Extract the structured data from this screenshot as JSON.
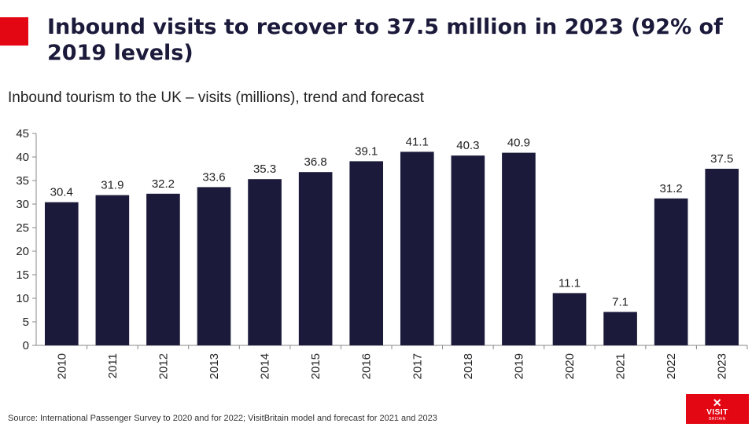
{
  "colors": {
    "accent": "#e30613",
    "bar": "#1b1a3b",
    "logo_bg": "#e30613"
  },
  "header": {
    "title": "Inbound visits to recover to 37.5 million in 2023 (92% of 2019 levels)",
    "subtitle": "Inbound tourism to the UK – visits (millions), trend and forecast"
  },
  "footer": {
    "source": "Source: International Passenger Survey to 2020 and for 2022; VisitBritain model and forecast for 2021 and 2023"
  },
  "logo": {
    "text": "VISIT",
    "small": "BRITAIN",
    "icon": "union-flag-icon"
  },
  "chart_data": {
    "type": "bar",
    "categories": [
      "2010",
      "2011",
      "2012",
      "2013",
      "2014",
      "2015",
      "2016",
      "2017",
      "2018",
      "2019",
      "2020",
      "2021",
      "2022",
      "2023"
    ],
    "values": [
      30.4,
      31.9,
      32.2,
      33.6,
      35.3,
      36.8,
      39.1,
      41.1,
      40.3,
      40.9,
      11.1,
      7.1,
      31.2,
      37.5
    ],
    "data_labels": [
      "30.4",
      "31.9",
      "32.2",
      "33.6",
      "35.3",
      "36.8",
      "39.1",
      "41.1",
      "40.3",
      "40.9",
      "11.1",
      "7.1",
      "31.2",
      "37.5"
    ],
    "ylim": [
      0,
      45
    ],
    "yticks": [
      0,
      5,
      10,
      15,
      20,
      25,
      30,
      35,
      40,
      45
    ],
    "grid": false,
    "legend": "none"
  }
}
